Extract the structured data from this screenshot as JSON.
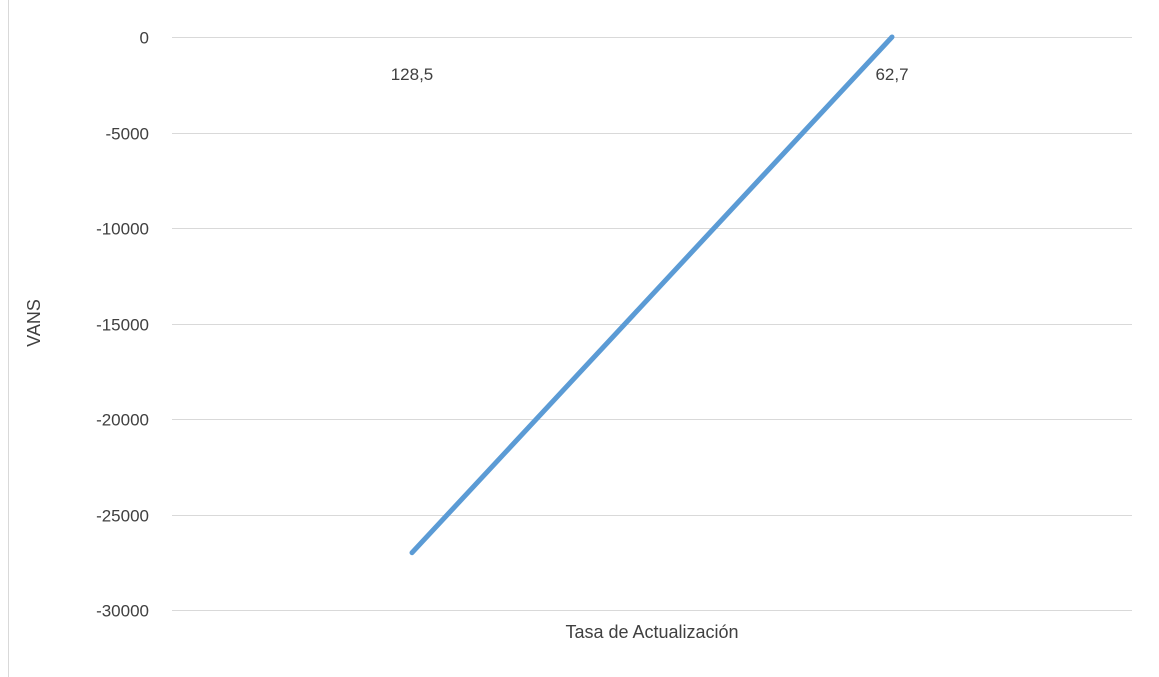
{
  "chart_data": {
    "type": "line",
    "categories": [
      "128,5",
      "62,7"
    ],
    "series": [
      {
        "values": [
          -27000,
          0
        ],
        "color": "#5b9bd5"
      }
    ],
    "xlabel": "Tasa de Actualización",
    "ylabel": "VANS",
    "ylim": [
      -30000,
      0
    ],
    "yticks": [
      0,
      -5000,
      -10000,
      -15000,
      -20000,
      -25000,
      -30000
    ],
    "ytick_labels": [
      "0",
      "-5000",
      "-10000",
      "-15000",
      "-20000",
      "-25000",
      "-30000"
    ],
    "grid": true,
    "legend": "none",
    "category_label_position": "top"
  },
  "colors": {
    "line": "#5b9bd5",
    "grid": "#d9d9d9",
    "text": "#404040",
    "border": "#d9d9d9"
  }
}
